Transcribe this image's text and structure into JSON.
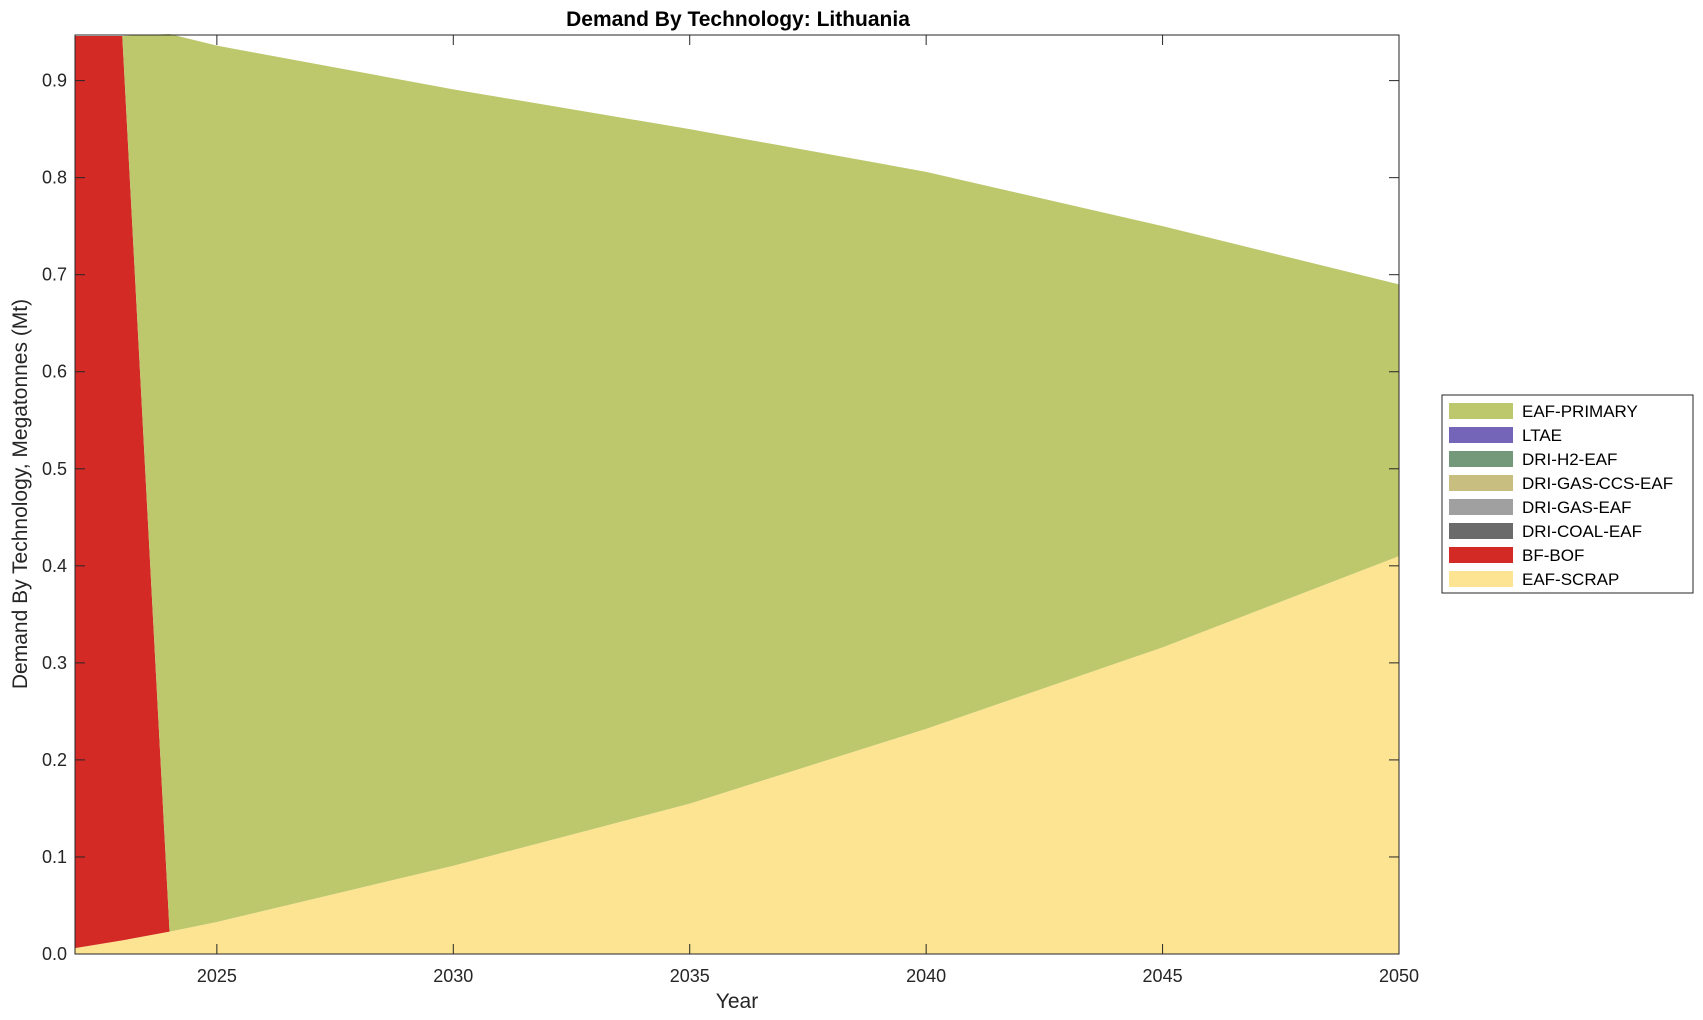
{
  "chart_data": {
    "type": "area",
    "stacked": true,
    "title": "Demand By Technology: Lithuania",
    "xlabel": "Year",
    "ylabel": "Demand By Technology, Megatonnes (Mt)",
    "xlim": [
      2022,
      2050
    ],
    "ylim": [
      0,
      0.947
    ],
    "xticks": [
      2025,
      2030,
      2035,
      2040,
      2045,
      2050
    ],
    "yticks": [
      0.0,
      0.1,
      0.2,
      0.3,
      0.4,
      0.5,
      0.6,
      0.7,
      0.8,
      0.9
    ],
    "ytick_labels": [
      "0.0",
      "0.1",
      "0.2",
      "0.3",
      "0.4",
      "0.5",
      "0.6",
      "0.7",
      "0.8",
      "0.9"
    ],
    "grid": false,
    "legend_position": "right",
    "x": [
      2022,
      2023,
      2024,
      2025,
      2030,
      2035,
      2040,
      2045,
      2050
    ],
    "series": [
      {
        "name": "EAF-SCRAP",
        "color": "#fde492",
        "values": [
          0.006,
          0.014,
          0.023,
          0.033,
          0.091,
          0.155,
          0.232,
          0.316,
          0.41
        ]
      },
      {
        "name": "BF-BOF",
        "color": "#d42a26",
        "values": [
          0.94,
          0.932,
          0.0,
          0.0,
          0.0,
          0.0,
          0.0,
          0.0,
          0.0
        ]
      },
      {
        "name": "DRI-COAL-EAF",
        "color": "#6b6b6b",
        "values": [
          0,
          0,
          0,
          0,
          0,
          0,
          0,
          0,
          0
        ]
      },
      {
        "name": "DRI-GAS-EAF",
        "color": "#a0a0a0",
        "values": [
          0,
          0,
          0,
          0,
          0,
          0,
          0,
          0,
          0
        ]
      },
      {
        "name": "DRI-GAS-CCS-EAF",
        "color": "#c8be80",
        "values": [
          0,
          0,
          0,
          0,
          0,
          0,
          0,
          0,
          0
        ]
      },
      {
        "name": "DRI-H2-EAF",
        "color": "#73987a",
        "values": [
          0,
          0,
          0,
          0,
          0,
          0,
          0,
          0,
          0
        ]
      },
      {
        "name": "LTAE",
        "color": "#7465b8",
        "values": [
          0,
          0,
          0,
          0,
          0,
          0,
          0,
          0,
          0
        ]
      },
      {
        "name": "EAF-PRIMARY",
        "color": "#bdc76c",
        "values": [
          0.0,
          0.0,
          0.925,
          0.903,
          0.8,
          0.695,
          0.574,
          0.434,
          0.28
        ]
      }
    ],
    "legend_order": [
      "EAF-PRIMARY",
      "LTAE",
      "DRI-H2-EAF",
      "DRI-GAS-CCS-EAF",
      "DRI-GAS-EAF",
      "DRI-COAL-EAF",
      "BF-BOF",
      "EAF-SCRAP"
    ]
  }
}
